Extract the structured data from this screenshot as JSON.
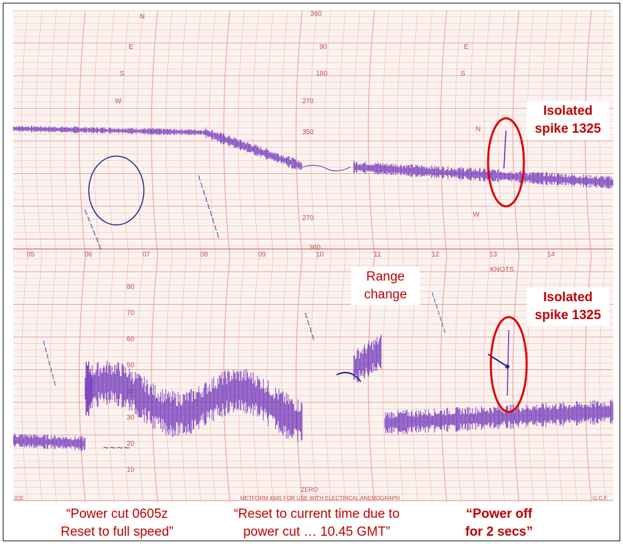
{
  "chart_header": {
    "top_scale_values": [
      "360",
      "90",
      "180",
      "270",
      "350",
      "270",
      "360"
    ],
    "compass": [
      "N",
      "E",
      "S",
      "W",
      "N",
      "E",
      "S",
      "W"
    ],
    "time_labels": [
      "05",
      "06",
      "07",
      "08",
      "09",
      "10",
      "11",
      "12",
      "13",
      "14"
    ],
    "knots_label": "KNOTS",
    "speed_scale": [
      "80",
      "70",
      "60",
      "50",
      "40",
      "30",
      "20",
      "10"
    ],
    "zero_label": "ZERO",
    "footer_left": "ICE",
    "footer_center": "METFORM 4945 FOR USE WITH ELECTRICAL ANEMOGRAPH",
    "footer_right": "G.C.F."
  },
  "annotations": {
    "isolated_spike_top": [
      "Isolated",
      "spike 1325"
    ],
    "isolated_spike_bottom": [
      "Isolated",
      "spike 1325"
    ],
    "range_change": [
      "Range",
      "change"
    ]
  },
  "captions": {
    "left": [
      "“Power cut 0605z",
      "Reset to full speed”"
    ],
    "center": [
      "“Reset to current time due to",
      "power cut … 10.45 GMT”"
    ],
    "right": [
      "“Power off",
      "for 2 secs”"
    ]
  },
  "colors": {
    "grid": "#e8a0a0",
    "trace": "#6a2bb8",
    "ink": "#1a2a8c",
    "annotation": "#c00000"
  }
}
